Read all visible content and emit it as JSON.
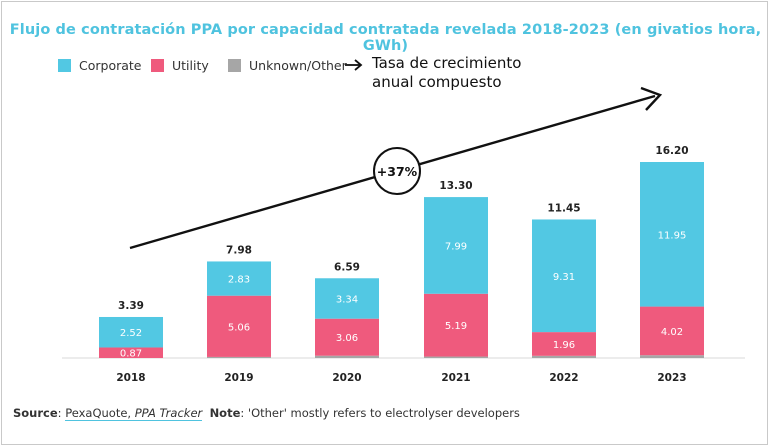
{
  "chart_data": {
    "type": "bar",
    "stacked": true,
    "title": "Flujo de contratación PPA por capacidad contratada revelada 2018-2023 (en givatios hora, GWh)",
    "categories": [
      "2018",
      "2019",
      "2020",
      "2021",
      "2022",
      "2023"
    ],
    "series": [
      {
        "name": "Unknown/Other",
        "color": "#a6a6a6",
        "values": [
          0.0,
          0.09,
          0.19,
          0.12,
          0.18,
          0.23
        ]
      },
      {
        "name": "Utility",
        "color": "#ef5a7d",
        "values": [
          0.87,
          5.06,
          3.06,
          5.19,
          1.96,
          4.02
        ]
      },
      {
        "name": "Corporate",
        "color": "#52c8e3",
        "values": [
          2.52,
          2.83,
          3.34,
          7.99,
          9.31,
          11.95
        ]
      }
    ],
    "totals": [
      3.39,
      7.98,
      6.59,
      13.3,
      11.45,
      16.2
    ],
    "total_labels": [
      "3.39",
      "7.98",
      "6.59",
      "13.30",
      "11.45",
      "16.20"
    ],
    "segment_labels": {
      "Corporate": [
        "2.52",
        "2.83",
        "3.34",
        "7.99",
        "9.31",
        "11.95"
      ],
      "Utility": [
        "0.87",
        "5.06",
        "3.06",
        "5.19",
        "1.96",
        "4.02"
      ]
    },
    "ylim": [
      0,
      16.2
    ],
    "grid": false,
    "legend": "top-left",
    "annotation": {
      "label": "+37%",
      "note_line1": "Tasa de crecimiento",
      "note_line2": "anual compuesto"
    }
  },
  "legend_items": [
    {
      "label": "Corporate",
      "color": "#52c8e3"
    },
    {
      "label": "Utility",
      "color": "#ef5a7d"
    },
    {
      "label": "Unknown/Other",
      "color": "#a6a6a6"
    }
  ],
  "source": {
    "prefix": "Source",
    "sep": ": ",
    "publisher": "PexaQuote, ",
    "product": "PPA Tracker",
    "note_label": "Note",
    "note_text": ": 'Other' mostly refers to electrolyser developers"
  }
}
